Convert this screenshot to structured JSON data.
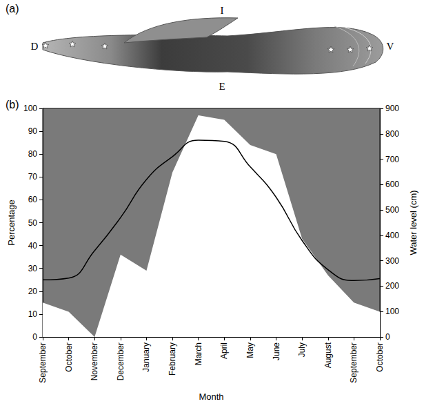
{
  "panels": [
    {
      "letter": "(a)",
      "labels": {
        "left": "D",
        "right": "V",
        "top": "I",
        "bottom": "E"
      }
    },
    {
      "letter": "(b)"
    }
  ],
  "chart_data": {
    "type": "line",
    "x_label": "Month",
    "y_label": "Percentage",
    "y2_label": "Water level (cm)",
    "categories": [
      "September",
      "October",
      "November",
      "December",
      "January",
      "February",
      "March",
      "April",
      "May",
      "June",
      "July",
      "August",
      "September",
      "October"
    ],
    "series": [
      {
        "name": "Percentage",
        "type": "area",
        "color": "#ffffff",
        "values": [
          15,
          11,
          0,
          36,
          29,
          72,
          97,
          95,
          84,
          80,
          43,
          27,
          15,
          11
        ]
      },
      {
        "name": "Water level",
        "type": "line",
        "color": "#000000",
        "axis": "y2",
        "values": [
          225,
          232,
          340,
          470,
          620,
          710,
          775,
          770,
          670,
          550,
          380,
          265,
          222,
          230
        ]
      }
    ],
    "ylim": [
      0,
      100
    ],
    "yticks": [
      0,
      10,
      20,
      30,
      40,
      50,
      60,
      70,
      80,
      90,
      100
    ],
    "y2lim": [
      0,
      900
    ],
    "y2ticks": [
      0,
      100,
      200,
      300,
      400,
      500,
      600,
      700,
      800,
      900
    ],
    "grid": false
  }
}
